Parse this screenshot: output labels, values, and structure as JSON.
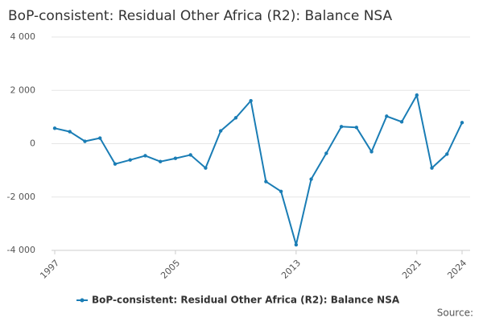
{
  "chart_data": {
    "type": "line",
    "title": "BoP-consistent: Residual Other Africa (R2): Balance NSA",
    "source": "Source:",
    "x": [
      1997,
      1998,
      1999,
      2000,
      2001,
      2002,
      2003,
      2004,
      2005,
      2006,
      2007,
      2008,
      2009,
      2010,
      2011,
      2012,
      2013,
      2014,
      2015,
      2016,
      2017,
      2018,
      2019,
      2020,
      2021,
      2022,
      2023,
      2024
    ],
    "series": [
      {
        "name": "BoP-consistent: Residual Other Africa (R2): Balance NSA",
        "color": "#1a7db5",
        "values": [
          580,
          450,
          90,
          210,
          -760,
          -610,
          -450,
          -670,
          -550,
          -420,
          -910,
          480,
          970,
          1610,
          -1420,
          -1790,
          -3790,
          -1330,
          -360,
          640,
          610,
          -300,
          1030,
          820,
          1820,
          -910,
          -390,
          790
        ]
      }
    ],
    "xlim": [
      1997,
      2024
    ],
    "xticks": [
      1997,
      2005,
      2013,
      2021,
      2024
    ],
    "ylim": [
      -4000,
      4000
    ],
    "yticks": [
      {
        "value": 4000,
        "label": "4 000"
      },
      {
        "value": 2000,
        "label": "2 000"
      },
      0,
      {
        "value": -2000,
        "label": "-2 000"
      },
      {
        "value": -4000,
        "label": "-4 000"
      }
    ],
    "grid": true
  }
}
